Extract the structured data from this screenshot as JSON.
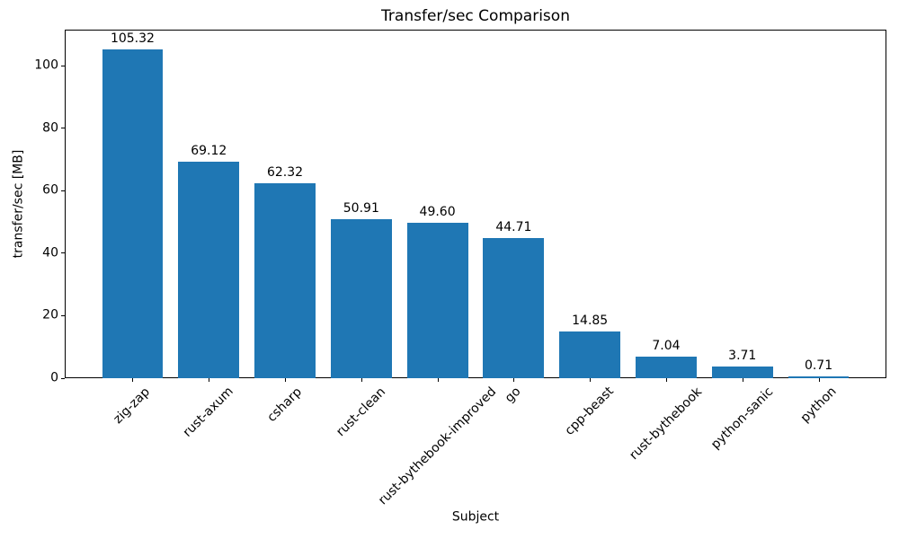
{
  "chart_data": {
    "type": "bar",
    "title": "Transfer/sec Comparison",
    "xlabel": "Subject",
    "ylabel": "transfer/sec [MB]",
    "categories": [
      "zig-zap",
      "rust-axum",
      "csharp",
      "rust-clean",
      "rust-bythebook-improved",
      "go",
      "cpp-beast",
      "rust-bythebook",
      "python-sanic",
      "python"
    ],
    "values": [
      105.32,
      69.12,
      62.32,
      50.91,
      49.6,
      44.71,
      14.85,
      7.04,
      3.71,
      0.71
    ],
    "value_labels": [
      "105.32",
      "69.12",
      "62.32",
      "50.91",
      "49.60",
      "44.71",
      "14.85",
      "7.04",
      "3.71",
      "0.71"
    ],
    "yticks": [
      0,
      20,
      40,
      60,
      80,
      100
    ],
    "ylim": [
      0,
      111.5
    ],
    "bar_color": "#1f77b4",
    "grid": false,
    "legend": null
  }
}
